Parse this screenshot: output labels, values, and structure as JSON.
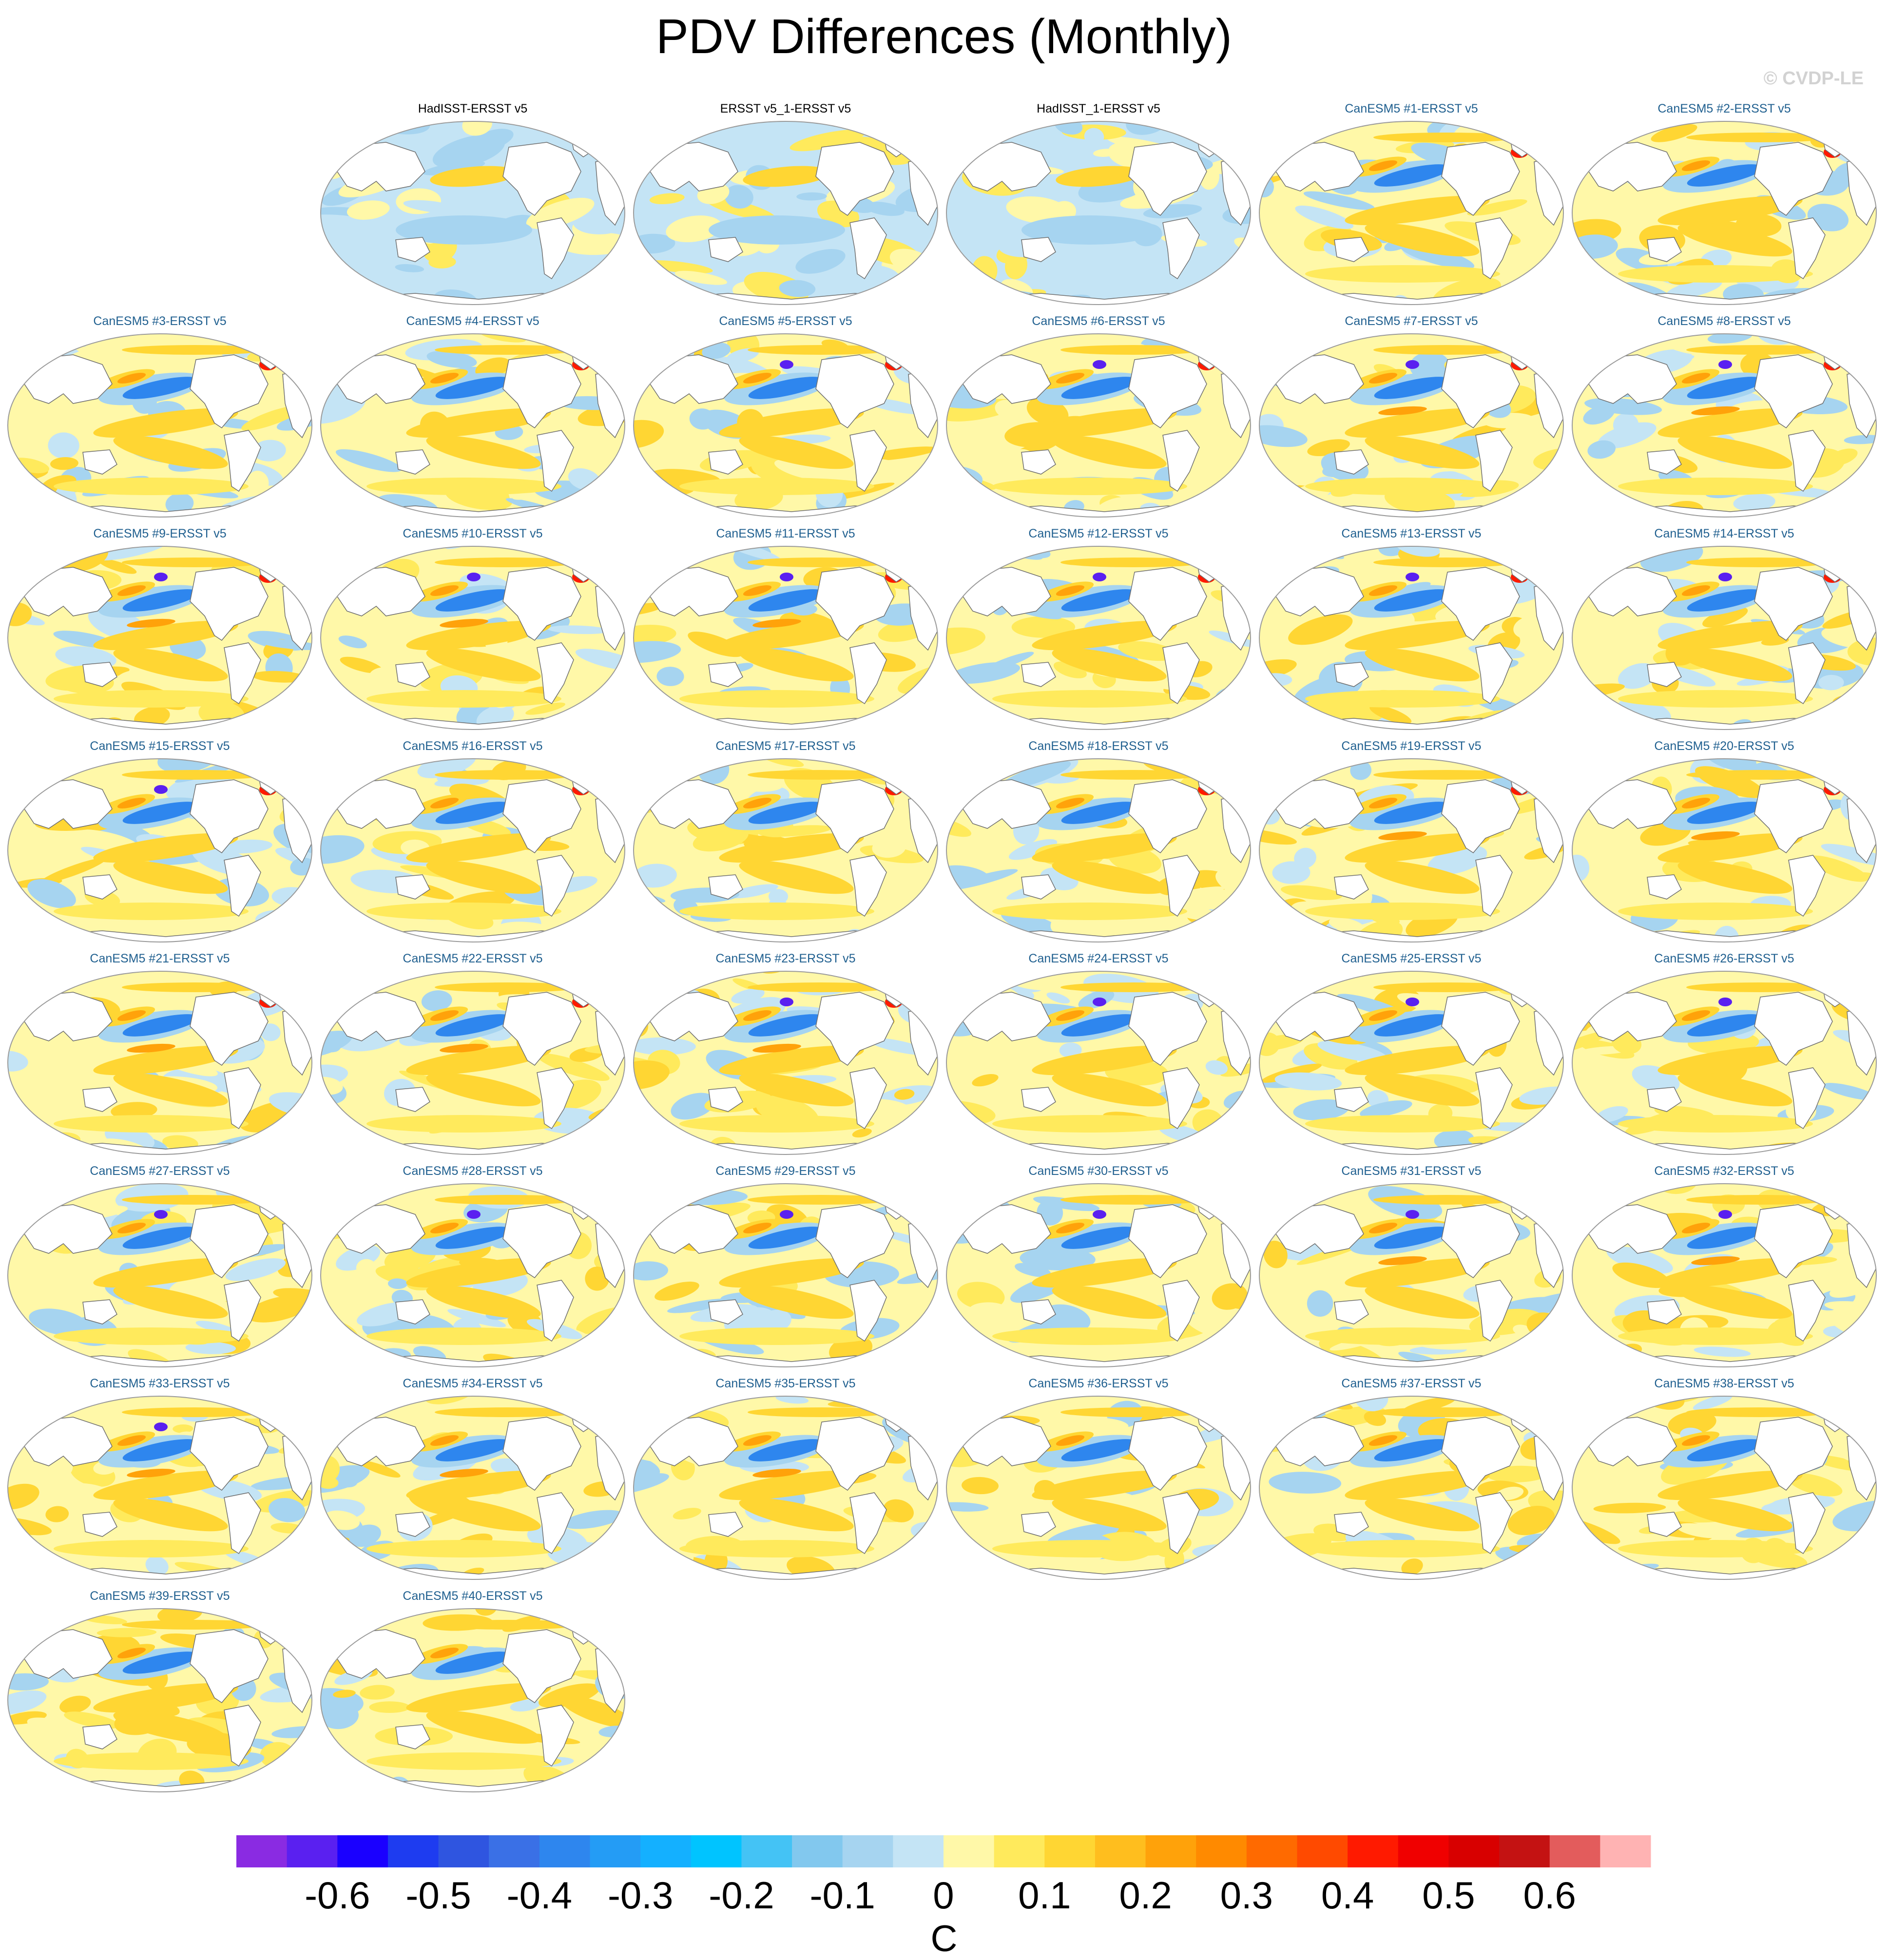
{
  "title": "PDV Differences (Monthly)",
  "watermark": "© CVDP-LE",
  "panels": [
    {
      "title": "HadISST-ERSST v5",
      "kind": "obs"
    },
    {
      "title": "ERSST v5_1-ERSST v5",
      "kind": "obs"
    },
    {
      "title": "HadISST_1-ERSST v5",
      "kind": "obs"
    },
    {
      "title": "CanESM5 #1-ERSST v5",
      "kind": "model"
    },
    {
      "title": "CanESM5 #2-ERSST v5",
      "kind": "model"
    },
    {
      "title": "CanESM5 #3-ERSST v5",
      "kind": "model"
    },
    {
      "title": "CanESM5 #4-ERSST v5",
      "kind": "model"
    },
    {
      "title": "CanESM5 #5-ERSST v5",
      "kind": "model"
    },
    {
      "title": "CanESM5 #6-ERSST v5",
      "kind": "model"
    },
    {
      "title": "CanESM5 #7-ERSST v5",
      "kind": "model"
    },
    {
      "title": "CanESM5 #8-ERSST v5",
      "kind": "model"
    },
    {
      "title": "CanESM5 #9-ERSST v5",
      "kind": "model"
    },
    {
      "title": "CanESM5 #10-ERSST v5",
      "kind": "model"
    },
    {
      "title": "CanESM5 #11-ERSST v5",
      "kind": "model"
    },
    {
      "title": "CanESM5 #12-ERSST v5",
      "kind": "model"
    },
    {
      "title": "CanESM5 #13-ERSST v5",
      "kind": "model"
    },
    {
      "title": "CanESM5 #14-ERSST v5",
      "kind": "model"
    },
    {
      "title": "CanESM5 #15-ERSST v5",
      "kind": "model"
    },
    {
      "title": "CanESM5 #16-ERSST v5",
      "kind": "model"
    },
    {
      "title": "CanESM5 #17-ERSST v5",
      "kind": "model"
    },
    {
      "title": "CanESM5 #18-ERSST v5",
      "kind": "model"
    },
    {
      "title": "CanESM5 #19-ERSST v5",
      "kind": "model"
    },
    {
      "title": "CanESM5 #20-ERSST v5",
      "kind": "model"
    },
    {
      "title": "CanESM5 #21-ERSST v5",
      "kind": "model"
    },
    {
      "title": "CanESM5 #22-ERSST v5",
      "kind": "model"
    },
    {
      "title": "CanESM5 #23-ERSST v5",
      "kind": "model"
    },
    {
      "title": "CanESM5 #24-ERSST v5",
      "kind": "model"
    },
    {
      "title": "CanESM5 #25-ERSST v5",
      "kind": "model"
    },
    {
      "title": "CanESM5 #26-ERSST v5",
      "kind": "model"
    },
    {
      "title": "CanESM5 #27-ERSST v5",
      "kind": "model"
    },
    {
      "title": "CanESM5 #28-ERSST v5",
      "kind": "model"
    },
    {
      "title": "CanESM5 #29-ERSST v5",
      "kind": "model"
    },
    {
      "title": "CanESM5 #30-ERSST v5",
      "kind": "model"
    },
    {
      "title": "CanESM5 #31-ERSST v5",
      "kind": "model"
    },
    {
      "title": "CanESM5 #32-ERSST v5",
      "kind": "model"
    },
    {
      "title": "CanESM5 #33-ERSST v5",
      "kind": "model"
    },
    {
      "title": "CanESM5 #34-ERSST v5",
      "kind": "model"
    },
    {
      "title": "CanESM5 #35-ERSST v5",
      "kind": "model"
    },
    {
      "title": "CanESM5 #36-ERSST v5",
      "kind": "model"
    },
    {
      "title": "CanESM5 #37-ERSST v5",
      "kind": "model"
    },
    {
      "title": "CanESM5 #38-ERSST v5",
      "kind": "model"
    },
    {
      "title": "CanESM5 #39-ERSST v5",
      "kind": "model"
    },
    {
      "title": "CanESM5 #40-ERSST v5",
      "kind": "model"
    }
  ],
  "colorbar": {
    "unit": "C",
    "tick_labels": [
      "-0.6",
      "-0.5",
      "-0.4",
      "-0.3",
      "-0.2",
      "-0.1",
      "0",
      "0.1",
      "0.2",
      "0.3",
      "0.4",
      "0.5",
      "0.6"
    ],
    "colors": [
      "#8a2be2",
      "#5a20f0",
      "#1a00ff",
      "#1e3cf0",
      "#2f55e0",
      "#3a70e6",
      "#2e86ee",
      "#249cf5",
      "#14b0ff",
      "#00c4ff",
      "#44c3f5",
      "#82c8ee",
      "#a6d4f0",
      "#c4e4f5",
      "#fff8a8",
      "#ffea5c",
      "#ffd633",
      "#ffbe1e",
      "#ffa20a",
      "#ff8a00",
      "#ff6a00",
      "#ff4a00",
      "#ff1a00",
      "#f00000",
      "#d80000",
      "#c41212",
      "#e35c5c",
      "#ffb3b3"
    ]
  },
  "map_colors": {
    "land": "#ffffff",
    "coast": "#6e6e6e",
    "border": "#9a9a9a",
    "cold_strong": "#5a20f0",
    "cold": "#2e86ee",
    "cool": "#a6d4f0",
    "neutral_cool": "#c4e4f5",
    "neutral_warm": "#fff8a8",
    "warm_light": "#ffea5c",
    "warm": "#ffd633",
    "orange": "#ffa20a",
    "red": "#ff1a00"
  }
}
